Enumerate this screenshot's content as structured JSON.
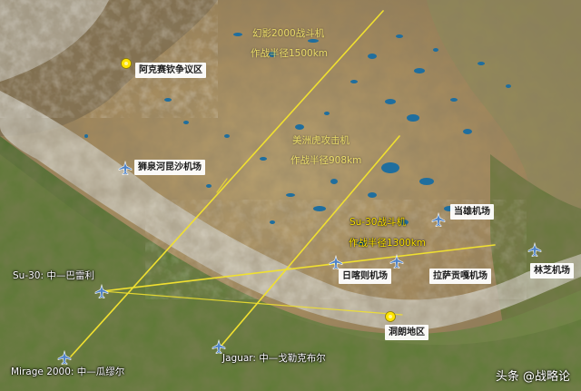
{
  "colors": {
    "range_line": "#f0e030",
    "plain_green": "#5f7a35",
    "plateau_tan": "#b39a6a",
    "lake_blue": "#1f6e9e",
    "plane_blue": "#4f83c7",
    "marker_yellow": "#ffe400"
  },
  "labels": {
    "aksai_chin": "阿克赛钦争议区",
    "shiquanhe": "狮泉河昆沙机场",
    "damxung": "当雄机场",
    "shigatse": "日喀则机场",
    "lhasa": "拉萨贡嘎机场",
    "nyingchi": "林芝机场",
    "tawang": "洞朗地区",
    "su30_base": "Su-30: 中—巴雷利",
    "mirage_base": "Mirage 2000: 中—瓜缪尔",
    "jaguar_base": "Jaguar: 中—戈勒克布尔"
  },
  "ranges": {
    "mirage_title": "幻影2000战斗机",
    "mirage_radius": "作战半径1500km",
    "jaguar_title": "美洲虎攻击机",
    "jaguar_radius": "作战半径908km",
    "su30_title": "Su-30战斗机",
    "su30_radius": "作战半径1300km"
  },
  "watermark": {
    "brand": "头条",
    "account": "@战略论"
  },
  "icons": {
    "airfield": "airplane-icon",
    "region": "yellow-pin-icon"
  }
}
